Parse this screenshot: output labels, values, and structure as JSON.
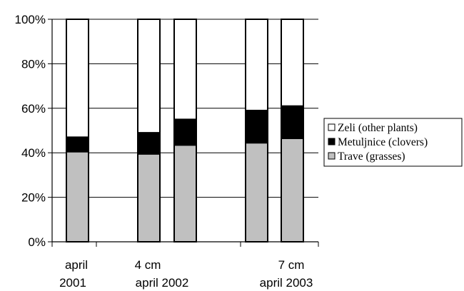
{
  "chart_data": {
    "type": "bar",
    "stacked": true,
    "percent_axis": true,
    "bars": 5,
    "series": [
      {
        "name": "Trave (grasses)",
        "color": "#c0c0c0",
        "values": [
          40.5,
          39.5,
          43.5,
          44.5,
          46.5
        ]
      },
      {
        "name": "Metuljnice (clovers)",
        "color": "#000000",
        "values": [
          6.5,
          9.5,
          11.5,
          14.5,
          14.5
        ]
      },
      {
        "name": "Zeli (other plants)",
        "color": "#ffffff",
        "values": [
          53,
          51,
          45,
          41,
          39
        ]
      }
    ],
    "legend_order": [
      2,
      1,
      0
    ],
    "legend_position": "right",
    "yticks": [
      "0%",
      "20%",
      "40%",
      "60%",
      "80%",
      "100%"
    ],
    "ylim": [
      0,
      100
    ],
    "grid": "horizontal",
    "xlabels": [
      {
        "line1": "april",
        "line2": "2001"
      },
      {
        "line1": "4 cm",
        "line2": "april 2002"
      },
      {
        "line1": "7 cm",
        "line2": "april 2003"
      }
    ]
  }
}
